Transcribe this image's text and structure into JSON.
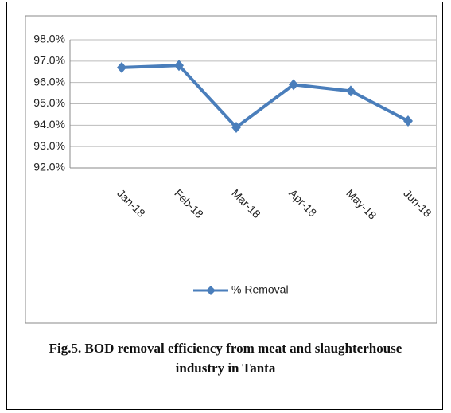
{
  "chart_data": {
    "type": "line",
    "categories": [
      "Jan-18",
      "Feb-18",
      "Mar-18",
      "Apr-18",
      "May-18",
      "Jun-18"
    ],
    "series": [
      {
        "name": "% Removal",
        "color": "#4a7ebb",
        "values": [
          96.7,
          96.8,
          93.9,
          95.9,
          95.6,
          94.2
        ]
      }
    ],
    "ylim": [
      92,
      98
    ],
    "yticks": [
      {
        "value": 92,
        "label": "92.0%"
      },
      {
        "value": 93,
        "label": "93.0%"
      },
      {
        "value": 94,
        "label": "94.0%"
      },
      {
        "value": 95,
        "label": "95.0%"
      },
      {
        "value": 96,
        "label": "96.0%"
      },
      {
        "value": 97,
        "label": "97.0%"
      },
      {
        "value": 98,
        "label": "98.0%"
      }
    ],
    "grid": true,
    "legend": "bottom"
  },
  "caption": "Fig.5. BOD removal efficiency from meat and slaughterhouse industry in Tanta"
}
